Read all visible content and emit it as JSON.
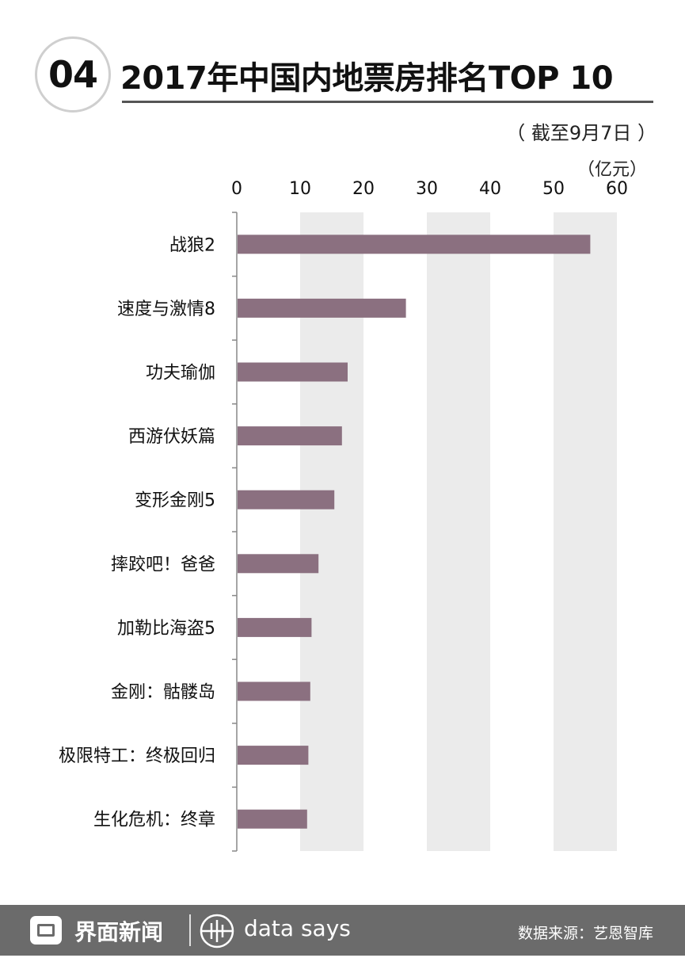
{
  "header": {
    "badge": "04",
    "title": "2017年中国内地票房排名TOP 10",
    "subtitle": "（ 截至9月7日 ）",
    "unit": "（亿元）"
  },
  "chart_data": {
    "type": "bar",
    "orientation": "horizontal",
    "title": "2017年中国内地票房排名TOP 10",
    "subtitle": "（ 截至9月7日 ）",
    "unit": "（亿元）",
    "categories": [
      "战狼2",
      "速度与激情8",
      "功夫瑜伽",
      "西游伏妖篇",
      "变形金刚5",
      "摔跤吧！爸爸",
      "加勒比海盗5",
      "金刚：骷髅岛",
      "极限特工：终极回归",
      "生化危机：终章"
    ],
    "values": [
      55.8,
      26.7,
      17.5,
      16.6,
      15.4,
      12.9,
      11.8,
      11.6,
      11.3,
      11.1
    ],
    "xlim": [
      0,
      60
    ],
    "xticks": [
      0,
      10,
      20,
      30,
      40,
      50,
      60
    ],
    "axis_position": "top",
    "bar_color": "#8b7080",
    "band_color": "#ebebeb"
  },
  "footer": {
    "brand": "界面新闻",
    "tagline": "data says",
    "source": "数据来源：艺恩智库"
  }
}
